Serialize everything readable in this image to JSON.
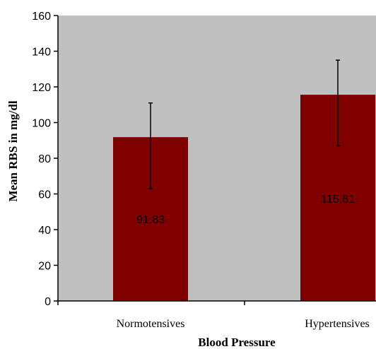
{
  "chart_data": {
    "type": "bar",
    "title": "",
    "xlabel": "Blood Pressure",
    "ylabel": "Mean RBS in mg/dl",
    "categories": [
      "Normotensives",
      "Hypertensives"
    ],
    "values": [
      91.83,
      115.61
    ],
    "data_labels": [
      "91.83",
      "115.61"
    ],
    "error_bars": [
      {
        "low": 63,
        "high": 111
      },
      {
        "low": 87,
        "high": 135
      }
    ],
    "ylim": [
      0,
      160
    ],
    "yticks": [
      0,
      20,
      40,
      60,
      80,
      100,
      120,
      140,
      160
    ],
    "ytick_labels": [
      "0",
      "20",
      "40",
      "60",
      "80",
      "100",
      "120",
      "140",
      "160"
    ],
    "grid": false,
    "colors": {
      "bar": "#800000",
      "plot_background": "#c0c0c0",
      "axis": "#000000"
    }
  }
}
